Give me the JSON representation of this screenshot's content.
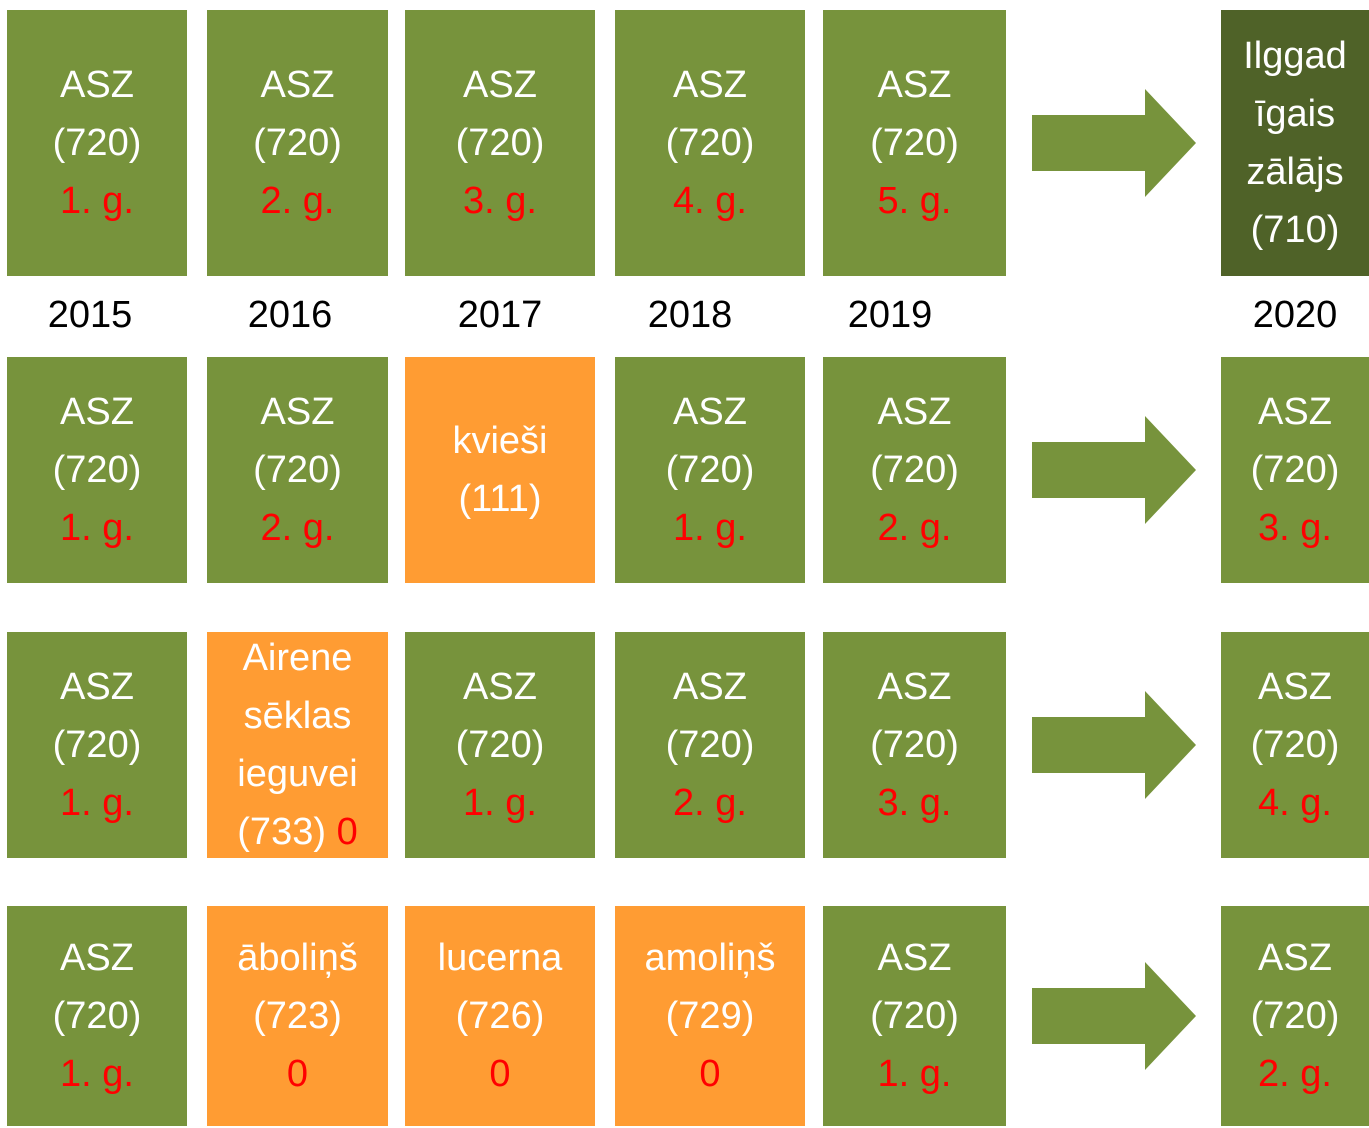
{
  "years": [
    "2015",
    "2016",
    "2017",
    "2018",
    "2019",
    "2020"
  ],
  "rows": [
    {
      "cells": [
        {
          "color": "#77933c",
          "lines": [
            "ASZ",
            "(720)"
          ],
          "note": "1. g."
        },
        {
          "color": "#77933c",
          "lines": [
            "ASZ",
            "(720)"
          ],
          "note": "2. g."
        },
        {
          "color": "#77933c",
          "lines": [
            "ASZ",
            "(720)"
          ],
          "note": "3. g."
        },
        {
          "color": "#77933c",
          "lines": [
            "ASZ",
            "(720)"
          ],
          "note": "4. g."
        },
        {
          "color": "#77933c",
          "lines": [
            "ASZ",
            "(720)"
          ],
          "note": "5. g."
        },
        {
          "color": "#4f6228",
          "lines": [
            "Ilggad",
            "īgais",
            "zālājs",
            "(710)"
          ]
        }
      ]
    },
    {
      "cells": [
        {
          "color": "#77933c",
          "lines": [
            "ASZ",
            "(720)"
          ],
          "note": "1. g."
        },
        {
          "color": "#77933c",
          "lines": [
            "ASZ",
            "(720)"
          ],
          "note": "2. g."
        },
        {
          "color": "#ff9c33",
          "lines": [
            "kvieši",
            "(111)"
          ]
        },
        {
          "color": "#77933c",
          "lines": [
            "ASZ",
            "(720)"
          ],
          "note": "1. g."
        },
        {
          "color": "#77933c",
          "lines": [
            "ASZ",
            "(720)"
          ],
          "note": "2. g."
        },
        {
          "color": "#77933c",
          "lines": [
            "ASZ",
            "(720)"
          ],
          "note": "3. g."
        }
      ]
    },
    {
      "cells": [
        {
          "color": "#77933c",
          "lines": [
            "ASZ",
            "(720)"
          ],
          "note": "1. g."
        },
        {
          "color": "#ff9c33",
          "lines": [
            "Airene",
            "sēklas",
            "ieguvei",
            "(733)"
          ],
          "note": "0",
          "note_inline": true
        },
        {
          "color": "#77933c",
          "lines": [
            "ASZ",
            "(720)"
          ],
          "note": "1. g."
        },
        {
          "color": "#77933c",
          "lines": [
            "ASZ",
            "(720)"
          ],
          "note": "2. g."
        },
        {
          "color": "#77933c",
          "lines": [
            "ASZ",
            "(720)"
          ],
          "note": "3. g."
        },
        {
          "color": "#77933c",
          "lines": [
            "ASZ",
            "(720)"
          ],
          "note": "4. g."
        }
      ]
    },
    {
      "cells": [
        {
          "color": "#77933c",
          "lines": [
            "ASZ",
            "(720)"
          ],
          "note": "1. g."
        },
        {
          "color": "#ff9c33",
          "lines": [
            "āboliņš",
            "(723)"
          ],
          "note": "0"
        },
        {
          "color": "#ff9c33",
          "lines": [
            "lucerna",
            "(726)"
          ],
          "note": "0"
        },
        {
          "color": "#ff9c33",
          "lines": [
            "amoliņš",
            "(729)"
          ],
          "note": "0"
        },
        {
          "color": "#77933c",
          "lines": [
            "ASZ",
            "(720)"
          ],
          "note": "1. g."
        },
        {
          "color": "#77933c",
          "lines": [
            "ASZ",
            "(720)"
          ],
          "note": "2. g."
        }
      ]
    }
  ]
}
